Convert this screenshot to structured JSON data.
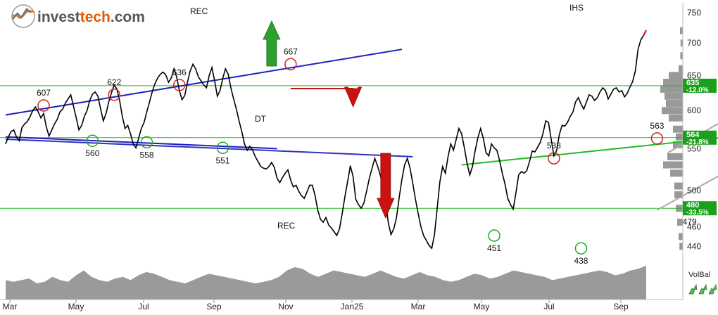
{
  "brand": {
    "name_prefix": "invest",
    "name_suffix": "tech",
    "name_tld": ".com",
    "colors": {
      "prefix": "#555555",
      "suffix": "#e05a00",
      "tld": "#555555"
    }
  },
  "chart_data": {
    "type": "line",
    "title": "",
    "xlabel": "",
    "ylabel": "",
    "x_ticks": [
      "Mar",
      "May",
      "Jul",
      "Sep",
      "Nov",
      "Jan25",
      "Mar",
      "May",
      "Jul",
      "Sep"
    ],
    "y_ticks": [
      440,
      460,
      500,
      550,
      600,
      650,
      700,
      750
    ],
    "y_scale": "log",
    "ylim": [
      425,
      760
    ],
    "grid": false,
    "series": [
      {
        "values": [
          556,
          565,
          572,
          574,
          565,
          560,
          577,
          582,
          585,
          592,
          600,
          605,
          598,
          590,
          596,
          578,
          566,
          574,
          582,
          588,
          598,
          602,
          610,
          616,
          622,
          606,
          590,
          574,
          580,
          592,
          600,
          614,
          623,
          626,
          620,
          602,
          586,
          596,
          612,
          625,
          636,
          630,
          614,
          592,
          576,
          580,
          569,
          556,
          551,
          563,
          576,
          584,
          598,
          612,
          626,
          638,
          646,
          652,
          655,
          651,
          640,
          646,
          660,
          648,
          628,
          615,
          621,
          640,
          657,
          667,
          660,
          648,
          642,
          636,
          632,
          650,
          662,
          642,
          620,
          628,
          646,
          660,
          652,
          632,
          616,
          602,
          586,
          572,
          556,
          548,
          553,
          548,
          540,
          534,
          528,
          526,
          525,
          528,
          533,
          527,
          514,
          509,
          515,
          520,
          524,
          512,
          504,
          506,
          499,
          494,
          491,
          498,
          506,
          506,
          494,
          478,
          468,
          465,
          470,
          462,
          459,
          455,
          451,
          458,
          474,
          493,
          510,
          529,
          516,
          490,
          484,
          480,
          486,
          499,
          514,
          526,
          538,
          529,
          518,
          506,
          488,
          464,
          452,
          458,
          470,
          492,
          513,
          530,
          538,
          526,
          508,
          490,
          474,
          460,
          451,
          446,
          441,
          438,
          452,
          480,
          510,
          528,
          520,
          540,
          556,
          548,
          562,
          576,
          569,
          551,
          532,
          518,
          528,
          548,
          564,
          576,
          563,
          545,
          541,
          556,
          551,
          548,
          535,
          520,
          507,
          491,
          484,
          479,
          497,
          518,
          522,
          520,
          523,
          534,
          547,
          546,
          552,
          558,
          570,
          586,
          584,
          562,
          541,
          548,
          568,
          580,
          579,
          584,
          592,
          598,
          612,
          618,
          609,
          602,
          612,
          622,
          620,
          614,
          618,
          626,
          632,
          628,
          616,
          623,
          630,
          632,
          626,
          628,
          619,
          624,
          633,
          641,
          657,
          690,
          705,
          712,
          721
        ]
      }
    ],
    "trendlines": [
      {
        "from": [
          0,
          594
        ],
        "to": [
          146,
          690
        ],
        "color": "#1f1fbf"
      },
      {
        "from": [
          0,
          565
        ],
        "to": [
          100,
          550
        ],
        "color": "#1f1fbf"
      },
      {
        "from": [
          0,
          562
        ],
        "to": [
          150,
          540
        ],
        "color": "#3030c0"
      },
      {
        "from": [
          168,
          530
        ],
        "to": [
          280,
          570
        ],
        "color": "#22bb22"
      },
      {
        "from": [
          240,
          478
        ],
        "to": [
          312,
          612
        ],
        "color": "#aaaaaa"
      },
      {
        "from": [
          244,
          545
        ],
        "to": [
          312,
          695
        ],
        "color": "#aaaaaa"
      }
    ],
    "horizontal_levels": [
      {
        "value": 635,
        "label": "635",
        "pct": "-12.0%"
      },
      {
        "value": 564,
        "label": "564",
        "pct": "-21.8%"
      },
      {
        "value": 480,
        "label": "480",
        "pct": "-33.5%"
      }
    ],
    "pivots": [
      {
        "index": 14,
        "value": 607,
        "label": "607",
        "kind": "top"
      },
      {
        "index": 40,
        "value": 622,
        "label": "622",
        "kind": "top"
      },
      {
        "index": 64,
        "value": 636,
        "label": "636",
        "kind": "top"
      },
      {
        "index": 105,
        "value": 667,
        "label": "667",
        "kind": "top"
      },
      {
        "index": 32,
        "value": 560,
        "label": "560",
        "kind": "bottom"
      },
      {
        "index": 52,
        "value": 558,
        "label": "558",
        "kind": "bottom"
      },
      {
        "index": 80,
        "value": 551,
        "label": "551",
        "kind": "bottom"
      },
      {
        "index": 180,
        "value": 451,
        "label": "451",
        "kind": "bottom"
      },
      {
        "index": 202,
        "value": 538,
        "label": "538",
        "kind": "top"
      },
      {
        "index": 212,
        "value": 438,
        "label": "438",
        "kind": "bottom"
      },
      {
        "index": 240,
        "value": 563,
        "label": "563",
        "kind": "top"
      },
      {
        "index": 252,
        "value": 479,
        "label": "479",
        "kind": "bottom"
      }
    ],
    "signals": [
      {
        "label": "REC",
        "kind": "buy"
      },
      {
        "label": "DT",
        "kind": "sell"
      },
      {
        "label": "REC",
        "kind": "sell"
      },
      {
        "label": "IHS",
        "kind": "buy"
      }
    ],
    "volume_balance": {
      "label": "VolBal",
      "values": [
        0.6,
        0.55,
        0.6,
        0.65,
        0.5,
        0.55,
        0.7,
        0.6,
        0.55,
        0.75,
        0.9,
        0.7,
        0.6,
        0.55,
        0.65,
        0.7,
        0.6,
        0.75,
        0.85,
        0.8,
        0.7,
        0.6,
        0.55,
        0.5,
        0.6,
        0.7,
        0.8,
        0.75,
        0.7,
        0.65,
        0.6,
        0.55,
        0.5,
        0.55,
        0.6,
        0.7,
        0.9,
        1.0,
        0.95,
        0.8,
        0.7,
        0.8,
        0.9,
        0.85,
        0.8,
        0.75,
        0.7,
        0.8,
        0.9,
        0.8,
        0.7,
        0.65,
        0.75,
        0.85,
        0.75,
        0.7,
        0.6,
        0.55,
        0.6,
        0.7,
        0.8,
        0.75,
        0.65,
        0.7,
        0.8,
        0.9,
        0.85,
        0.8,
        0.75,
        0.7,
        0.6,
        0.65,
        0.7,
        0.75,
        0.8,
        0.85,
        0.9,
        0.85,
        0.75,
        0.8,
        0.9,
        0.95,
        1.05
      ]
    },
    "volume_profile": [
      {
        "value": 720,
        "size": 0.1
      },
      {
        "value": 700,
        "size": 0.08
      },
      {
        "value": 680,
        "size": 0.09
      },
      {
        "value": 660,
        "size": 0.15
      },
      {
        "value": 650,
        "size": 0.5
      },
      {
        "value": 640,
        "size": 0.7
      },
      {
        "value": 630,
        "size": 0.8
      },
      {
        "value": 620,
        "size": 0.65
      },
      {
        "value": 610,
        "size": 0.6
      },
      {
        "value": 600,
        "size": 0.75
      },
      {
        "value": 590,
        "size": 0.5
      },
      {
        "value": 575,
        "size": 0.35
      },
      {
        "value": 565,
        "size": 0.25
      },
      {
        "value": 555,
        "size": 0.35
      },
      {
        "value": 540,
        "size": 0.55
      },
      {
        "value": 530,
        "size": 0.7
      },
      {
        "value": 520,
        "size": 0.45
      },
      {
        "value": 505,
        "size": 0.3
      },
      {
        "value": 495,
        "size": 0.3
      },
      {
        "value": 480,
        "size": 0.25
      },
      {
        "value": 465,
        "size": 0.2
      },
      {
        "value": 450,
        "size": 0.15
      },
      {
        "value": 440,
        "size": 0.12
      }
    ]
  }
}
